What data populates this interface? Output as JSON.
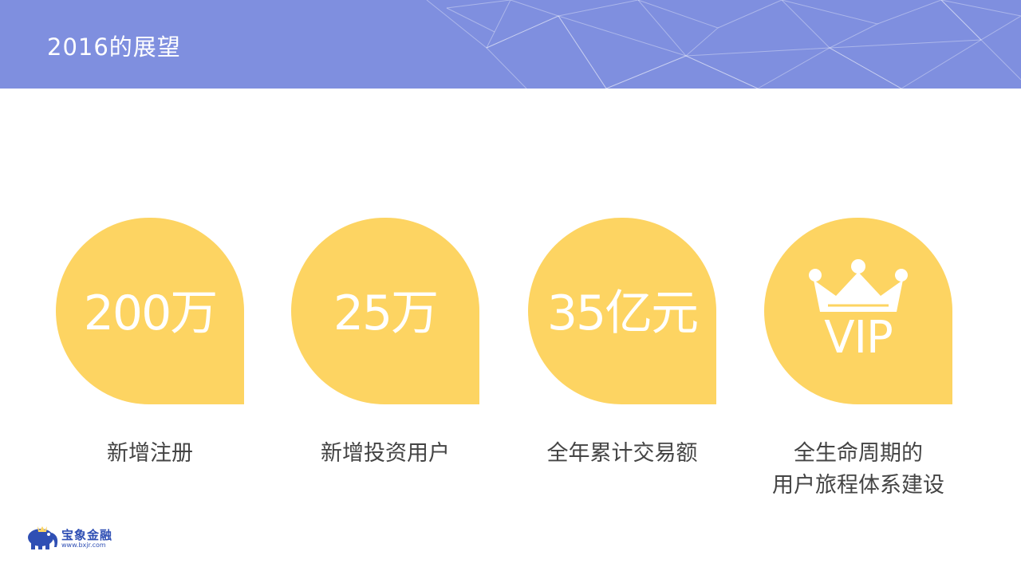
{
  "slide": {
    "title": "2016的展望"
  },
  "cards": [
    {
      "value": "200万",
      "caption": "新增注册"
    },
    {
      "value": "25万",
      "caption": "新增投资用户"
    },
    {
      "value": "35亿元",
      "caption": "全年累计交易额"
    },
    {
      "value": "VIP",
      "caption_line1": "全生命周期的",
      "caption_line2": "用户旅程体系建设",
      "icon": "crown-icon"
    }
  ],
  "logo": {
    "name": "宝象金融",
    "url": "www.bxjr.com",
    "icon": "elephant-icon"
  },
  "colors": {
    "header": "#7f8fdf",
    "accent": "#fdd462",
    "text": "#444444",
    "brand": "#2f4fb4"
  }
}
